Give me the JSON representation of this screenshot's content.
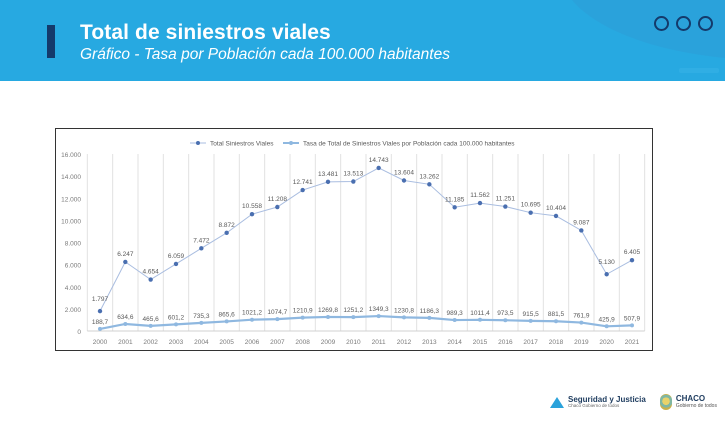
{
  "header": {
    "title": "Total de siniestros viales",
    "subtitle": "Gráfico - Tasa por Población cada 100.000 habitantes",
    "menu_icon": "three-circles-icon"
  },
  "chart_data": {
    "type": "line",
    "title": "",
    "xlabel": "",
    "ylabel": "",
    "ylim": [
      0,
      16000
    ],
    "yticks": [
      0,
      2000,
      4000,
      6000,
      8000,
      10000,
      12000,
      14000,
      16000
    ],
    "ytick_labels": [
      "0",
      "2.000",
      "4.000",
      "6.000",
      "8.000",
      "10.000",
      "12.000",
      "14.000",
      "16.000"
    ],
    "grid": "vertical",
    "legend_position": "top",
    "x": [
      "2000",
      "2001",
      "2002",
      "2003",
      "2004",
      "2005",
      "2006",
      "2007",
      "2008",
      "2009",
      "2010",
      "2011",
      "2012",
      "2013",
      "2014",
      "2015",
      "2016",
      "2017",
      "2018",
      "2019",
      "2020",
      "2021"
    ],
    "series": [
      {
        "name": "Total Siniestros Viales",
        "color": "#4a6fb0",
        "line_color": "#a9bde0",
        "values": [
          1797,
          6247,
          4654,
          6059,
          7472,
          8872,
          10558,
          11208,
          12741,
          13481,
          13513,
          14743,
          13604,
          13262,
          11185,
          11562,
          11251,
          10695,
          10404,
          9087,
          5130,
          6405
        ],
        "labels": [
          "1.797",
          "6.247",
          "4.654",
          "6.059",
          "7.472",
          "8.872",
          "10.558",
          "11.208",
          "12.741",
          "13.481",
          "13.513",
          "14.743",
          "13.604",
          "13.262",
          "11.185",
          "11.562",
          "11.251",
          "10.695",
          "10.404",
          "9.087",
          "5.130",
          "6.405"
        ]
      },
      {
        "name": "Tasa de Total de Siniestros Viales por Población cada 100.000 habitantes",
        "color": "#8fb8e0",
        "line_color": "#8fb8e0",
        "values": [
          188.7,
          634.6,
          465.6,
          601.2,
          735.3,
          865.6,
          1021.2,
          1074.7,
          1210.9,
          1269.8,
          1251.2,
          1349.3,
          1230.8,
          1186.3,
          989.3,
          1011.4,
          973.5,
          915.5,
          881.5,
          761.9,
          425.9,
          507.9
        ],
        "labels": [
          "188,7",
          "634,6",
          "465,6",
          "601,2",
          "735,3",
          "865,6",
          "1021,2",
          "1074,7",
          "1210,9",
          "1269,8",
          "1251,2",
          "1349,3",
          "1230,8",
          "1186,3",
          "989,3",
          "1011,4",
          "973,5",
          "915,5",
          "881,5",
          "761,9",
          "425,9",
          "507,9"
        ]
      }
    ]
  },
  "footer": {
    "logo1_main": "Seguridad y Justicia",
    "logo1_sub": "Chaco Gobierno de todos",
    "logo2_main": "CHACO",
    "logo2_sub": "Gobierno de todos"
  }
}
